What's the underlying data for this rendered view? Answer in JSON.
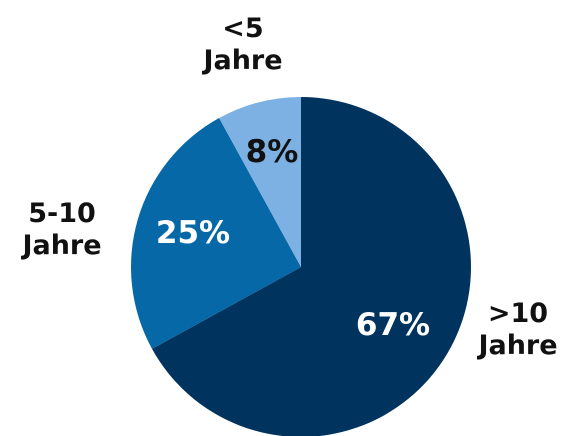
{
  "chart_data": {
    "type": "pie",
    "categories": [
      ">10 Jahre",
      "5-10 Jahre",
      "<5 Jahre"
    ],
    "values": [
      67,
      25,
      8
    ],
    "value_labels": [
      "67%",
      "25%",
      "8%"
    ],
    "colors": [
      "#00345f",
      "#0768a7",
      "#7eb1e3"
    ]
  }
}
